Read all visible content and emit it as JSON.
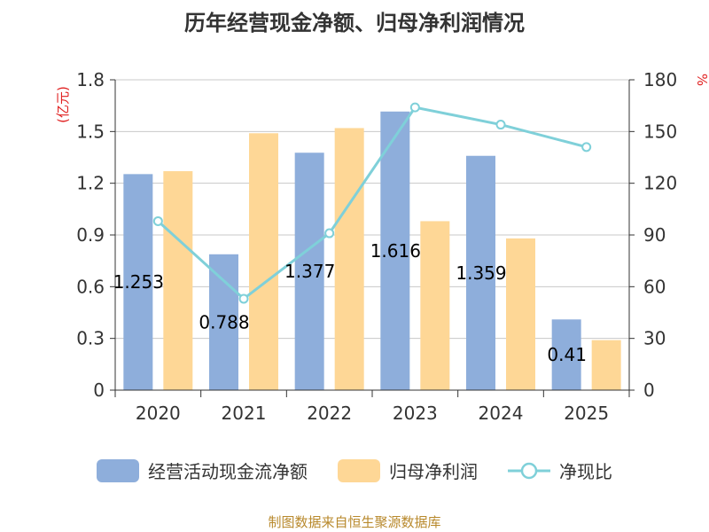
{
  "colors": {
    "bar1": "#8eaedb",
    "bar2": "#fed796",
    "line": "#7fd0d9",
    "grid": "#c8c8c8",
    "axis": "#333333",
    "unit": "#e02020",
    "source": "#b8892c"
  },
  "chart_data": {
    "type": "bar+line",
    "title": "历年经营现金净额、归母净利润情况",
    "categories": [
      "2020",
      "2021",
      "2022",
      "2023",
      "2024",
      "2025"
    ],
    "left_axis": {
      "unit": "(亿元)",
      "ylim": [
        0,
        1.8
      ],
      "ticks": [
        "0",
        "0.3",
        "0.6",
        "0.9",
        "1.2",
        "1.5",
        "1.8"
      ]
    },
    "right_axis": {
      "unit": "%",
      "ylim": [
        0,
        180
      ],
      "ticks": [
        "0",
        "30",
        "60",
        "90",
        "120",
        "150",
        "180"
      ]
    },
    "series": [
      {
        "name": "经营活动现金流净额",
        "type": "bar",
        "axis": "left",
        "values": [
          1.253,
          0.788,
          1.377,
          1.616,
          1.359,
          0.41
        ],
        "labels": [
          "1.253",
          "0.788",
          "1.377",
          "1.616",
          "1.359",
          "0.41"
        ]
      },
      {
        "name": "归母净利润",
        "type": "bar",
        "axis": "left",
        "values": [
          1.27,
          1.49,
          1.52,
          0.98,
          0.88,
          0.29
        ]
      },
      {
        "name": "净现比",
        "type": "line",
        "axis": "right",
        "values": [
          98,
          53,
          91,
          164,
          154,
          141
        ]
      }
    ],
    "grid": true
  },
  "source": "制图数据来自恒生聚源数据库"
}
